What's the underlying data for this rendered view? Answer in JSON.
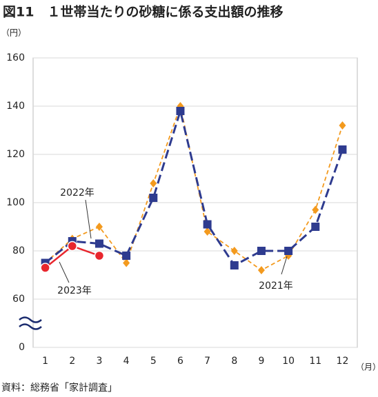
{
  "chart_data": {
    "type": "line",
    "title": "図11　１世帯当たりの砂糖に係る支出額の推移",
    "y_unit": "（円）",
    "x_unit": "（月）",
    "source": "資料：総務省「家計調査」",
    "categories": [
      "1",
      "2",
      "3",
      "4",
      "5",
      "6",
      "7",
      "8",
      "9",
      "10",
      "11",
      "12"
    ],
    "series": [
      {
        "name": "2021年",
        "color": "#f39a1e",
        "marker": "diamond",
        "values": [
          75,
          85,
          90,
          75,
          108,
          140,
          88,
          80,
          72,
          78,
          97,
          132
        ]
      },
      {
        "name": "2022年",
        "color": "#2e3b8f",
        "marker": "square",
        "values": [
          75,
          84,
          83,
          78,
          102,
          138,
          91,
          74,
          80,
          80,
          90,
          122
        ]
      },
      {
        "name": "2023年",
        "color": "#e8262d",
        "marker": "circle",
        "values": [
          73,
          82,
          78,
          null,
          null,
          null,
          null,
          null,
          null,
          null,
          null,
          null
        ]
      }
    ],
    "ylim": [
      0,
      160
    ],
    "yticks": [
      0,
      60,
      80,
      100,
      120,
      140,
      160
    ],
    "axis_break": true,
    "grid": true
  }
}
